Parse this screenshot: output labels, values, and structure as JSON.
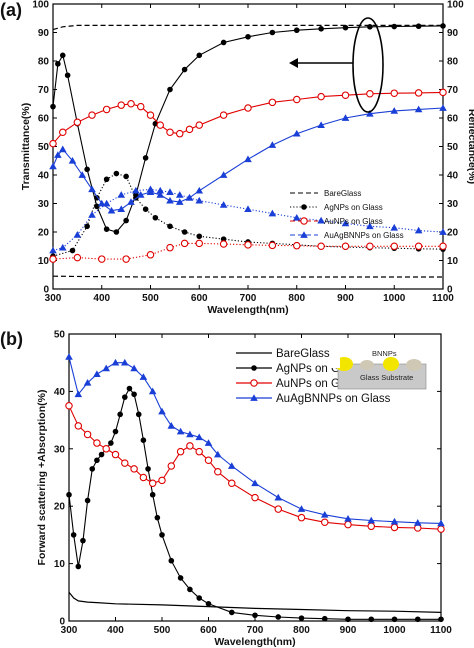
{
  "panel_labels": [
    "(a)",
    "(b)"
  ],
  "inset": {
    "label": "BNNPs",
    "substrate": "Glass Substrate"
  },
  "chart_data": [
    {
      "type": "line",
      "xlabel": "Wavelength(nm)",
      "ylabel": "Transmittance(%)",
      "ylabel_right": "Reflectance(%)",
      "xlim": [
        300,
        1100
      ],
      "ylim": [
        0,
        100
      ],
      "xticks": [
        300,
        400,
        500,
        600,
        700,
        800,
        900,
        1000,
        1100
      ],
      "yticks": [
        0,
        10,
        20,
        30,
        40,
        50,
        60,
        70,
        80,
        90,
        100
      ],
      "grid": false,
      "legend_position": "lower-right",
      "annotation": "arrow pointing left from ellipse around reflectance curves",
      "series": [
        {
          "name": "BareGlass",
          "kind": "transmittance",
          "color": "#000000",
          "marker": "none",
          "dash": "dashed",
          "x": [
            300,
            320,
            350,
            400,
            500,
            600,
            700,
            800,
            900,
            1000,
            1100
          ],
          "values": [
            91,
            92,
            92.5,
            92.5,
            92.5,
            92.5,
            92.5,
            92.5,
            92.5,
            92.5,
            92.5
          ]
        },
        {
          "name": "BareGlass",
          "kind": "reflectance",
          "color": "#000000",
          "marker": "none",
          "dash": "dashed",
          "x": [
            300,
            400,
            500,
            600,
            700,
            800,
            900,
            1000,
            1100
          ],
          "values": [
            4.5,
            4.3,
            4.2,
            4.2,
            4.2,
            4.2,
            4.2,
            4.2,
            4.2
          ]
        },
        {
          "name": "AgNPs on Glass",
          "kind": "transmittance",
          "color": "#000000",
          "marker": "circle-filled",
          "dash": "solid",
          "x": [
            300,
            310,
            320,
            330,
            350,
            370,
            390,
            410,
            430,
            450,
            470,
            490,
            510,
            540,
            570,
            600,
            650,
            700,
            750,
            800,
            850,
            900,
            950,
            1000,
            1050,
            1100
          ],
          "values": [
            64,
            79,
            82,
            75,
            58,
            42,
            29,
            21,
            20,
            24,
            33,
            46,
            58,
            70,
            77,
            82,
            86.5,
            88.5,
            90,
            90.8,
            91.3,
            91.7,
            92,
            92.1,
            92.2,
            92.3
          ]
        },
        {
          "name": "AgNPs on Glass",
          "kind": "reflectance",
          "color": "#000000",
          "marker": "circle-filled",
          "dash": "dotted",
          "x": [
            300,
            340,
            370,
            390,
            410,
            430,
            450,
            470,
            490,
            510,
            540,
            570,
            600,
            650,
            700,
            750,
            800,
            850,
            900,
            950,
            1000,
            1050,
            1100
          ],
          "values": [
            11.5,
            13.5,
            22,
            32,
            38.5,
            40.5,
            39.5,
            32,
            28,
            25,
            22,
            20,
            18.5,
            17.5,
            16.5,
            16,
            15.5,
            15,
            14.7,
            14.5,
            14.3,
            14.1,
            14
          ]
        },
        {
          "name": "AuNPs on Glass",
          "kind": "transmittance",
          "color": "#e00000",
          "marker": "circle-open",
          "dash": "solid",
          "x": [
            300,
            320,
            350,
            380,
            410,
            440,
            460,
            480,
            500,
            520,
            540,
            560,
            580,
            600,
            650,
            700,
            750,
            800,
            850,
            900,
            950,
            1000,
            1050,
            1100
          ],
          "values": [
            51,
            55,
            58.5,
            61,
            63,
            64.5,
            65,
            64,
            61,
            57.5,
            55,
            54.5,
            56,
            57.5,
            61,
            63.5,
            65.5,
            66.5,
            67.5,
            68,
            68.5,
            68.7,
            68.8,
            69
          ]
        },
        {
          "name": "AuNPs on Glass",
          "kind": "reflectance",
          "color": "#e00000",
          "marker": "circle-open",
          "dash": "dotted",
          "x": [
            300,
            350,
            400,
            450,
            500,
            540,
            570,
            600,
            650,
            700,
            750,
            800,
            850,
            900,
            950,
            1000,
            1050,
            1100
          ],
          "values": [
            10.5,
            11,
            10.5,
            10.5,
            12,
            14.5,
            16,
            16,
            15.8,
            15.5,
            15.3,
            15.2,
            15,
            15,
            15,
            15,
            15,
            15
          ]
        },
        {
          "name": "AuAgBNNPs on Glass",
          "kind": "transmittance",
          "color": "#1a3fd6",
          "marker": "triangle-filled",
          "dash": "solid",
          "x": [
            300,
            310,
            320,
            340,
            360,
            380,
            400,
            420,
            440,
            460,
            480,
            500,
            520,
            540,
            560,
            580,
            600,
            650,
            700,
            750,
            800,
            850,
            900,
            950,
            1000,
            1050,
            1100
          ],
          "values": [
            43,
            47,
            49,
            45,
            40,
            35,
            30,
            27.5,
            28,
            30.5,
            33,
            34,
            33,
            31,
            30.5,
            32,
            34.5,
            40,
            45.5,
            50.5,
            54.5,
            57.5,
            60,
            61.5,
            62.5,
            63,
            63.5
          ]
        },
        {
          "name": "AuAgBNNPs on Glass",
          "kind": "reflectance",
          "color": "#1a3fd6",
          "marker": "triangle-filled",
          "dash": "dotted",
          "x": [
            300,
            320,
            350,
            380,
            410,
            440,
            470,
            500,
            520,
            540,
            560,
            580,
            600,
            650,
            700,
            750,
            800,
            850,
            900,
            950,
            1000,
            1050,
            1100
          ],
          "values": [
            13.5,
            14.5,
            19,
            26,
            30,
            33,
            34.5,
            35,
            34.5,
            34,
            33,
            32,
            31,
            29.5,
            28,
            26.5,
            25,
            24,
            23,
            22,
            21.5,
            20.5,
            20
          ]
        }
      ]
    },
    {
      "type": "line",
      "xlabel": "Wavelength(nm)",
      "ylabel": "Forward scattering +Absorption(%)",
      "xlim": [
        300,
        1100
      ],
      "ylim": [
        0,
        50
      ],
      "xticks": [
        300,
        400,
        500,
        600,
        700,
        800,
        900,
        1000,
        1100
      ],
      "yticks": [
        0,
        10,
        20,
        30,
        40,
        50
      ],
      "grid": false,
      "legend_position": "top-center",
      "series": [
        {
          "name": "BareGlass",
          "color": "#000000",
          "marker": "none",
          "x": [
            300,
            310,
            320,
            340,
            360,
            400,
            500,
            600,
            700,
            800,
            900,
            1000,
            1100
          ],
          "values": [
            5,
            4,
            3.5,
            3.3,
            3.2,
            3,
            2.8,
            2.5,
            2.2,
            2,
            1.8,
            1.7,
            1.5
          ]
        },
        {
          "name": "AgNPs on Glass",
          "color": "#000000",
          "marker": "circle-filled",
          "x": [
            300,
            310,
            320,
            330,
            340,
            350,
            360,
            370,
            380,
            390,
            400,
            410,
            420,
            430,
            440,
            450,
            460,
            470,
            480,
            490,
            500,
            520,
            540,
            560,
            580,
            600,
            650,
            700,
            750,
            800,
            850,
            900,
            950,
            1000,
            1050,
            1100
          ],
          "values": [
            22,
            15,
            9.5,
            14,
            21,
            26.5,
            28,
            29,
            30,
            31,
            33,
            36,
            39,
            40.5,
            39.5,
            36,
            31.5,
            26.5,
            22,
            18,
            15,
            10.5,
            7.5,
            5.5,
            4,
            3,
            1.5,
            1,
            0.7,
            0.5,
            0.4,
            0.3,
            0.3,
            0.3,
            0.3,
            0.3
          ]
        },
        {
          "name": "AuNPs on Glass",
          "color": "#e00000",
          "marker": "circle-open",
          "x": [
            300,
            320,
            340,
            360,
            380,
            400,
            420,
            440,
            460,
            480,
            500,
            520,
            540,
            560,
            580,
            600,
            620,
            650,
            700,
            750,
            800,
            850,
            900,
            950,
            1000,
            1050,
            1100
          ],
          "values": [
            37.5,
            34,
            32.5,
            31,
            30,
            29,
            27.5,
            26.5,
            25,
            24,
            24.5,
            27,
            29.5,
            30.5,
            29.5,
            28,
            26,
            24,
            21.5,
            19.5,
            18,
            17.2,
            16.8,
            16.5,
            16.3,
            16.2,
            16
          ]
        },
        {
          "name": "AuAgBNNPs on Glass",
          "color": "#1a3fd6",
          "marker": "triangle-filled",
          "x": [
            300,
            320,
            340,
            360,
            380,
            400,
            420,
            440,
            460,
            480,
            500,
            520,
            540,
            560,
            580,
            600,
            620,
            650,
            700,
            750,
            800,
            850,
            900,
            950,
            1000,
            1050,
            1100
          ],
          "values": [
            46,
            39.5,
            41.5,
            43,
            44,
            45,
            45,
            44,
            42.5,
            40,
            36.5,
            34,
            33,
            32.5,
            32,
            31,
            29,
            27,
            24,
            21.5,
            19.5,
            18.5,
            17.8,
            17.5,
            17.3,
            17.1,
            17
          ]
        }
      ]
    }
  ]
}
